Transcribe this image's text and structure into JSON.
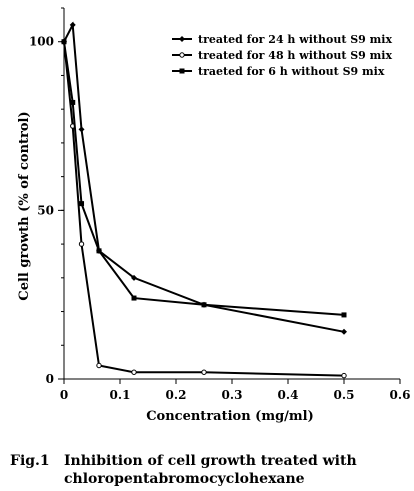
{
  "chart_data": {
    "type": "line",
    "xlabel": "Concentration (mg/ml)",
    "ylabel": "Cell growth (% of control)",
    "xlim": [
      0,
      0.6
    ],
    "ylim": [
      0,
      110
    ],
    "x_ticks": [
      0,
      0.1,
      0.2,
      0.3,
      0.4,
      0.5,
      0.6
    ],
    "x_tick_labels": [
      "0",
      "0.1",
      "0.2",
      "0.3",
      "0.4",
      "0.5",
      "0.6"
    ],
    "y_ticks": [
      0,
      50,
      100
    ],
    "y_tick_labels": [
      "0",
      "50",
      "100"
    ],
    "grid": false,
    "legend_position": "top-right",
    "series": [
      {
        "name": "treated for 24 h without S9 mix",
        "marker": "diamond",
        "x": [
          0,
          0.0156,
          0.0313,
          0.0625,
          0.125,
          0.25,
          0.5
        ],
        "y": [
          100,
          105,
          74,
          38,
          30,
          22,
          14
        ]
      },
      {
        "name": "treated for 48 h without S9 mix",
        "marker": "open-circle",
        "x": [
          0,
          0.0156,
          0.0313,
          0.0625,
          0.125,
          0.25,
          0.5
        ],
        "y": [
          100,
          75,
          40,
          4,
          2,
          2,
          1
        ]
      },
      {
        "name": "traeted for 6 h without S9 mix",
        "marker": "square",
        "x": [
          0,
          0.0156,
          0.0313,
          0.0625,
          0.125,
          0.25,
          0.5
        ],
        "y": [
          100,
          82,
          52,
          38,
          24,
          22,
          19
        ]
      }
    ]
  },
  "caption": {
    "label": "Fig.1",
    "line1": "Inhibition of cell growth treated with",
    "line2": "chloropentabromocyclohexane"
  }
}
